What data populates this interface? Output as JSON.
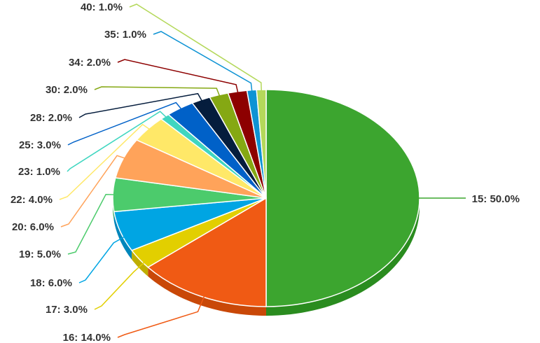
{
  "chart_data": {
    "type": "pie",
    "style": "3d",
    "slices": [
      {
        "label": "15: 50.0%",
        "value": 50.0,
        "color": "#3ca52f",
        "side_color": "#2a8c1f"
      },
      {
        "label": "16: 14.0%",
        "value": 14.0,
        "color": "#f05a14",
        "side_color": "#c94808"
      },
      {
        "label": "17: 3.0%",
        "value": 3.0,
        "color": "#e2cf00",
        "side_color": "#bfae00"
      },
      {
        "label": "18: 6.0%",
        "value": 6.0,
        "color": "#00a5e3",
        "side_color": "#0086bb"
      },
      {
        "label": "19: 5.0%",
        "value": 5.0,
        "color": "#4ccb6c",
        "side_color": "#3aa957"
      },
      {
        "label": "20: 6.0%",
        "value": 6.0,
        "color": "#ffa35a",
        "side_color": "#e08740"
      },
      {
        "label": "22: 4.0%",
        "value": 4.0,
        "color": "#ffe868",
        "side_color": "#dcc74a"
      },
      {
        "label": "23: 1.0%",
        "value": 1.0,
        "color": "#3fd6c0",
        "side_color": "#2cb3a0"
      },
      {
        "label": "25: 3.0%",
        "value": 3.0,
        "color": "#0061c8",
        "side_color": "#004ea3"
      },
      {
        "label": "28: 2.0%",
        "value": 2.0,
        "color": "#051d3d",
        "side_color": "#03122a"
      },
      {
        "label": "30: 2.0%",
        "value": 2.0,
        "color": "#85a813",
        "side_color": "#6b8a0c"
      },
      {
        "label": "34: 2.0%",
        "value": 2.0,
        "color": "#8d0000",
        "side_color": "#6c0000"
      },
      {
        "label": "35: 1.0%",
        "value": 1.0,
        "color": "#0e93d4",
        "side_color": "#0a78ae"
      },
      {
        "label": "40: 1.0%",
        "value": 1.0,
        "color": "#b4d85a",
        "side_color": "#94b840"
      }
    ]
  }
}
